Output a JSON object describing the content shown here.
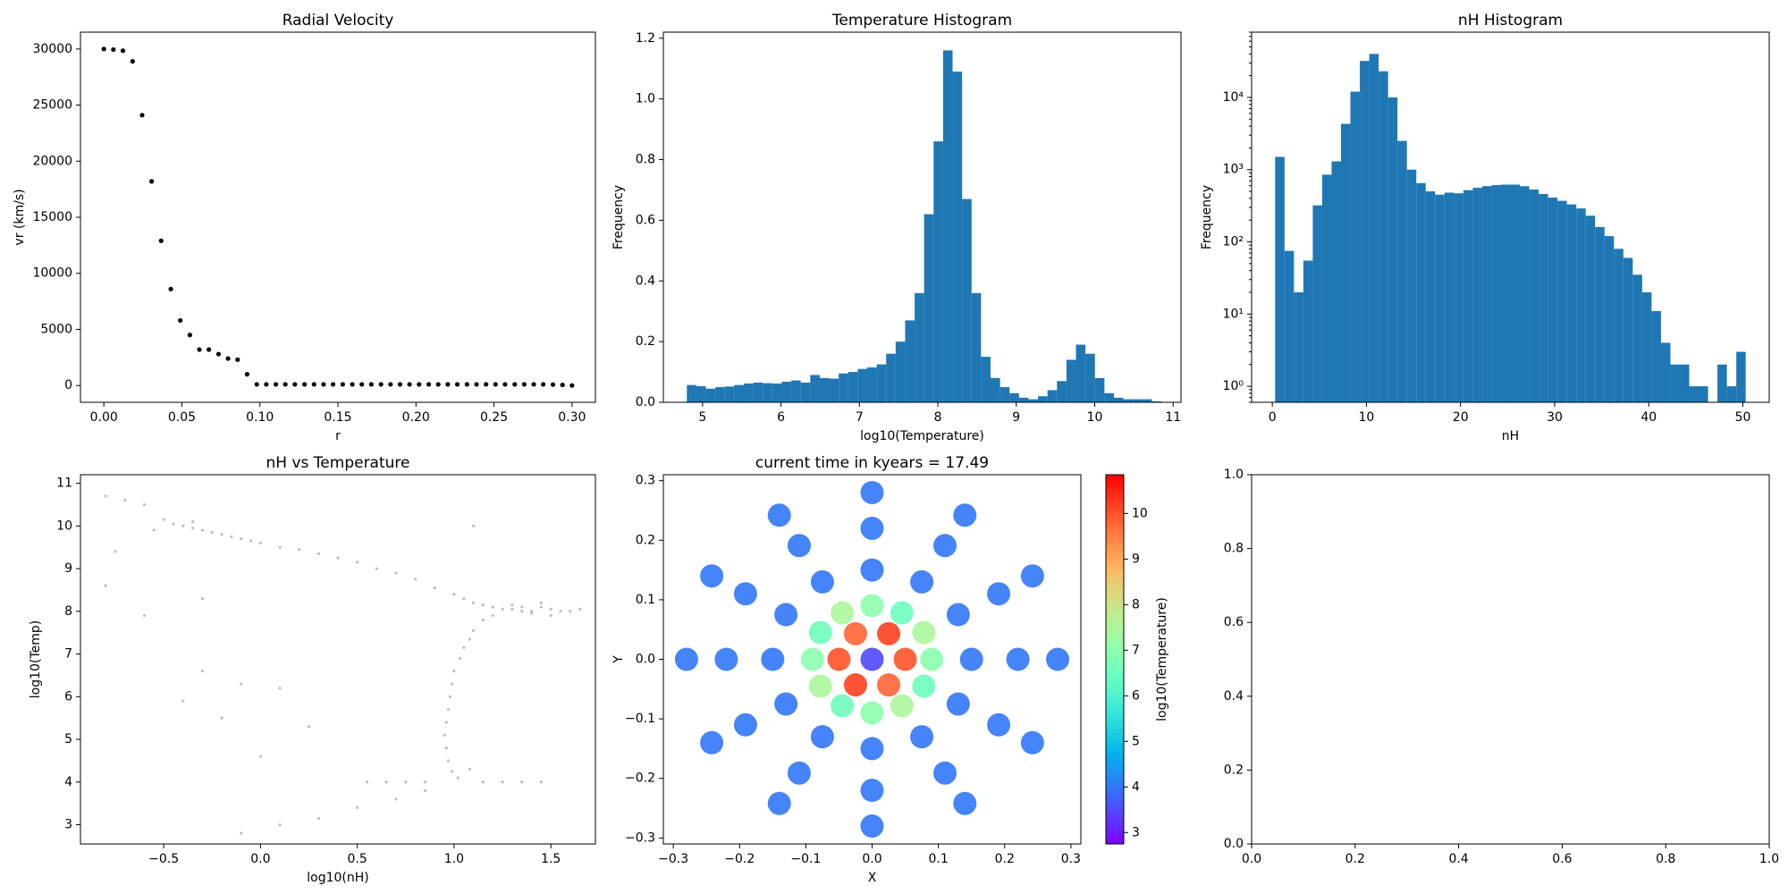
{
  "chart_data": [
    {
      "type": "scatter",
      "title": "Radial Velocity",
      "xlabel": "r",
      "ylabel": "vr (km/s)",
      "color": "#000000",
      "x": [
        0,
        0.0061,
        0.0122,
        0.0184,
        0.0245,
        0.0306,
        0.0367,
        0.0429,
        0.049,
        0.0551,
        0.0612,
        0.0673,
        0.0735,
        0.0796,
        0.0857,
        0.0918,
        0.098,
        0.1041,
        0.1102,
        0.1163,
        0.1224,
        0.1286,
        0.1347,
        0.1408,
        0.1469,
        0.1531,
        0.1592,
        0.1653,
        0.1714,
        0.1776,
        0.1837,
        0.1898,
        0.1959,
        0.202,
        0.2082,
        0.2143,
        0.2204,
        0.2265,
        0.2327,
        0.2388,
        0.2449,
        0.251,
        0.2571,
        0.2633,
        0.2694,
        0.2755,
        0.2816,
        0.2878,
        0.2939,
        0.3
      ],
      "y": [
        30000,
        29950,
        29850,
        28900,
        24100,
        18200,
        12900,
        8600,
        5800,
        4500,
        3200,
        3200,
        2800,
        2400,
        2300,
        1000,
        100,
        100,
        100,
        100,
        100,
        100,
        100,
        100,
        100,
        100,
        100,
        100,
        100,
        100,
        100,
        100,
        100,
        100,
        100,
        100,
        100,
        100,
        100,
        100,
        100,
        100,
        100,
        100,
        100,
        100,
        100,
        80,
        50,
        0
      ],
      "xlim": [
        -0.015,
        0.315
      ],
      "xticks": [
        {
          "value": 0,
          "label": "0.00"
        },
        {
          "value": 0.05,
          "label": "0.05"
        },
        {
          "value": 0.1,
          "label": "0.10"
        },
        {
          "value": 0.15,
          "label": "0.15"
        },
        {
          "value": 0.2,
          "label": "0.20"
        },
        {
          "value": 0.25,
          "label": "0.25"
        },
        {
          "value": 0.3,
          "label": "0.30"
        }
      ],
      "ylim": [
        -1500,
        31500
      ],
      "yticks": [
        0,
        5000,
        10000,
        15000,
        20000,
        25000,
        30000
      ]
    },
    {
      "type": "histogram",
      "title": "Temperature Histogram",
      "xlabel": "log10(Temperature)",
      "ylabel": "Frequency",
      "color": "#1f77b4",
      "bins": [
        4.8,
        4.921,
        5.042,
        5.163,
        5.284,
        5.405,
        5.526,
        5.647,
        5.768,
        5.889,
        6.01,
        6.131,
        6.252,
        6.373,
        6.494,
        6.615,
        6.736,
        6.857,
        6.978,
        7.099,
        7.22,
        7.341,
        7.462,
        7.583,
        7.704,
        7.825,
        7.946,
        8.067,
        8.188,
        8.309,
        8.43,
        8.551,
        8.672,
        8.793,
        8.914,
        9.035,
        9.156,
        9.277,
        9.398,
        9.519,
        9.64,
        9.761,
        9.882,
        10.003,
        10.124,
        10.245,
        10.366,
        10.487,
        10.608,
        10.729,
        10.85
      ],
      "values": [
        0.057,
        0.053,
        0.045,
        0.05,
        0.052,
        0.057,
        0.062,
        0.065,
        0.063,
        0.062,
        0.068,
        0.072,
        0.065,
        0.09,
        0.08,
        0.078,
        0.095,
        0.1,
        0.11,
        0.115,
        0.125,
        0.16,
        0.2,
        0.27,
        0.36,
        0.62,
        0.86,
        1.16,
        1.09,
        0.67,
        0.36,
        0.15,
        0.08,
        0.05,
        0.03,
        0.015,
        0.01,
        0.02,
        0.04,
        0.07,
        0.14,
        0.19,
        0.16,
        0.08,
        0.03,
        0.015,
        0.01,
        0.01,
        0.01,
        0.003
      ],
      "xlim": [
        4.5,
        11.1
      ],
      "xticks": [
        5,
        6,
        7,
        8,
        9,
        10,
        11
      ],
      "ylim": [
        0,
        1.22
      ],
      "yticks": [
        {
          "value": 0,
          "label": "0.0"
        },
        {
          "value": 0.2,
          "label": "0.2"
        },
        {
          "value": 0.4,
          "label": "0.4"
        },
        {
          "value": 0.6,
          "label": "0.6"
        },
        {
          "value": 0.8,
          "label": "0.8"
        },
        {
          "value": 1,
          "label": "1.0"
        },
        {
          "value": 1.2,
          "label": "1.2"
        }
      ]
    },
    {
      "type": "histogram",
      "title": "nH Histogram",
      "xlabel": "nH",
      "ylabel": "Frequency",
      "color": "#1f77b4",
      "yscale": "log",
      "bins": [
        0.3,
        1.3,
        2.3,
        3.3,
        4.3,
        5.3,
        6.3,
        7.3,
        8.3,
        9.3,
        10.3,
        11.3,
        12.3,
        13.3,
        14.3,
        15.3,
        16.3,
        17.3,
        18.3,
        19.3,
        20.3,
        21.3,
        22.3,
        23.3,
        24.3,
        25.3,
        26.3,
        27.3,
        28.3,
        29.3,
        30.3,
        31.3,
        32.3,
        33.3,
        34.3,
        35.3,
        36.3,
        37.3,
        38.3,
        39.3,
        40.3,
        41.3,
        42.3,
        43.3,
        44.3,
        45.3,
        46.3,
        47.3,
        48.3,
        49.3,
        50.3
      ],
      "values": [
        1500,
        75,
        20,
        55,
        320,
        850,
        1300,
        4300,
        12000,
        32000,
        40000,
        23000,
        10000,
        2500,
        1000,
        650,
        500,
        450,
        480,
        470,
        520,
        560,
        590,
        610,
        620,
        620,
        590,
        530,
        460,
        410,
        370,
        330,
        290,
        230,
        160,
        120,
        80,
        60,
        35,
        20,
        11,
        4,
        2,
        2,
        1,
        1,
        0,
        2,
        1,
        3
      ],
      "xlim": [
        -2.2,
        52.8
      ],
      "xticks": [
        0,
        10,
        20,
        30,
        40,
        50
      ],
      "ylim": [
        0.6,
        80000
      ],
      "yticks": [
        {
          "value": 1,
          "label": "10⁰"
        },
        {
          "value": 10,
          "label": "10¹"
        },
        {
          "value": 100,
          "label": "10²"
        },
        {
          "value": 1000,
          "label": "10³"
        },
        {
          "value": 10000,
          "label": "10⁴"
        }
      ]
    },
    {
      "type": "scatter",
      "title": "nH vs Temperature",
      "xlabel": "log10(nH)",
      "ylabel": "log10(Temp)",
      "color": "#000000",
      "x": [
        -0.8,
        -0.7,
        -0.6,
        -0.5,
        -0.45,
        -0.4,
        -0.35,
        -0.3,
        -0.25,
        -0.2,
        -0.15,
        -0.1,
        -0.05,
        0,
        0.1,
        0.2,
        0.3,
        0.4,
        0.5,
        0.6,
        0.7,
        0.8,
        0.9,
        1.0,
        1.05,
        1.1,
        1.15,
        1.2,
        1.25,
        1.3,
        1.35,
        1.4,
        1.45,
        1.5,
        1.55,
        1.6,
        1.65,
        1.3,
        1.4,
        1.5,
        1.2,
        1.35,
        1.45,
        1.15,
        1.1,
        1.08,
        1.05,
        1.03,
        1.0,
        0.99,
        0.98,
        0.97,
        0.96,
        0.95,
        0.96,
        0.97,
        0.99,
        1.02,
        1.08,
        0.55,
        0.65,
        0.75,
        0.85,
        1.15,
        1.25,
        1.35,
        1.45,
        -0.1,
        0.1,
        0.3,
        0.5,
        0.7,
        0.85,
        -0.75,
        -0.8,
        -0.6,
        -0.4,
        -0.3,
        -0.2,
        -0.1,
        0,
        0.25,
        -0.3,
        0.1,
        1.1,
        -0.55,
        -0.35
      ],
      "y": [
        10.7,
        10.6,
        10.5,
        10.15,
        10.05,
        10.0,
        9.95,
        9.9,
        9.85,
        9.8,
        9.75,
        9.7,
        9.65,
        9.6,
        9.5,
        9.45,
        9.35,
        9.25,
        9.15,
        9.0,
        8.9,
        8.75,
        8.55,
        8.4,
        8.3,
        8.2,
        8.15,
        8.1,
        8.05,
        8.05,
        8.0,
        8.0,
        8.1,
        8.05,
        8.0,
        8.0,
        8.05,
        8.15,
        7.95,
        7.9,
        7.9,
        8.1,
        8.2,
        7.8,
        7.55,
        7.35,
        7.15,
        6.9,
        6.6,
        6.3,
        6.0,
        5.7,
        5.4,
        5.1,
        4.8,
        4.5,
        4.25,
        4.1,
        4.3,
        4.0,
        4.0,
        4.0,
        4.0,
        4.0,
        4.0,
        4.0,
        4.0,
        2.8,
        3.0,
        3.15,
        3.4,
        3.6,
        3.8,
        9.4,
        8.6,
        7.9,
        5.9,
        6.6,
        5.5,
        6.3,
        4.6,
        5.3,
        8.3,
        6.2,
        10.0,
        9.9,
        10.1
      ],
      "xlim": [
        -0.93,
        1.73
      ],
      "xticks": [
        {
          "value": -0.5,
          "label": "−0.5"
        },
        {
          "value": 0,
          "label": "0.0"
        },
        {
          "value": 0.5,
          "label": "0.5"
        },
        {
          "value": 1,
          "label": "1.0"
        },
        {
          "value": 1.5,
          "label": "1.5"
        }
      ],
      "ylim": [
        2.55,
        11.2
      ],
      "yticks": [
        3,
        4,
        5,
        6,
        7,
        8,
        9,
        10,
        11
      ]
    },
    {
      "type": "colorscatter",
      "title": "current time in kyears = 17.49",
      "xlabel": "X",
      "ylabel": "Y",
      "colormap": "rainbow",
      "x": [
        0.15,
        0.13,
        0.075,
        0,
        -0.075,
        -0.13,
        -0.15,
        -0.13,
        -0.075,
        0,
        0.075,
        0.13,
        0.22,
        0.191,
        0.11,
        0,
        -0.11,
        -0.191,
        -0.22,
        -0.191,
        -0.11,
        0,
        0.11,
        0.191,
        0.28,
        0.242,
        0.14,
        0,
        -0.14,
        -0.242,
        -0.28,
        -0.242,
        -0.14,
        0,
        0.14,
        0.242,
        0.09,
        0.078,
        0.045,
        0,
        -0.045,
        -0.078,
        -0.09,
        -0.078,
        -0.045,
        0,
        0.045,
        0.078,
        0.05,
        0.025,
        -0.025,
        -0.05,
        -0.025,
        0.025,
        0
      ],
      "y": [
        0,
        0.075,
        0.13,
        0.15,
        0.13,
        0.075,
        0,
        -0.075,
        -0.13,
        -0.15,
        -0.13,
        -0.075,
        0,
        0.11,
        0.191,
        0.22,
        0.191,
        0.11,
        0,
        -0.11,
        -0.191,
        -0.22,
        -0.191,
        -0.11,
        0,
        0.14,
        0.242,
        0.28,
        0.242,
        0.14,
        0,
        -0.14,
        -0.242,
        -0.28,
        -0.242,
        -0.14,
        0,
        0.045,
        0.078,
        0.09,
        0.078,
        0.045,
        0,
        -0.045,
        -0.078,
        -0.09,
        -0.078,
        -0.045,
        0,
        0.043,
        0.043,
        0,
        -0.043,
        -0.043,
        0
      ],
      "c": [
        4,
        4,
        4,
        4,
        4,
        4,
        4,
        4,
        4,
        4,
        4,
        4,
        4,
        4,
        4,
        4,
        4,
        4,
        4,
        4,
        4,
        4,
        4,
        4,
        4,
        4,
        4,
        4,
        4,
        4,
        4,
        4,
        4,
        4,
        4,
        4,
        7,
        7.5,
        6.5,
        7,
        7.5,
        6.5,
        7,
        7.5,
        6.5,
        7,
        7.5,
        6.5,
        10,
        10.2,
        9.8,
        10,
        10.2,
        9.8,
        3.5
      ],
      "xlim": [
        -0.315,
        0.315
      ],
      "xticks": [
        {
          "value": -0.3,
          "label": "−0.3"
        },
        {
          "value": -0.2,
          "label": "−0.2"
        },
        {
          "value": -0.1,
          "label": "−0.1"
        },
        {
          "value": 0,
          "label": "0.0"
        },
        {
          "value": 0.1,
          "label": "0.1"
        },
        {
          "value": 0.2,
          "label": "0.2"
        },
        {
          "value": 0.3,
          "label": "0.3"
        }
      ],
      "ylim": [
        -0.31,
        0.31
      ],
      "yticks": [
        {
          "value": -0.3,
          "label": "−0.3"
        },
        {
          "value": -0.2,
          "label": "−0.2"
        },
        {
          "value": -0.1,
          "label": "−0.1"
        },
        {
          "value": 0,
          "label": "0.0"
        },
        {
          "value": 0.1,
          "label": "0.1"
        },
        {
          "value": 0.2,
          "label": "0.2"
        },
        {
          "value": 0.3,
          "label": "0.3"
        }
      ],
      "colorbar": {
        "label": "log10(Temperature)",
        "clim": [
          2.75,
          10.85
        ],
        "ticks": [
          3,
          4,
          5,
          6,
          7,
          8,
          9,
          10
        ]
      }
    },
    {
      "type": "empty",
      "xlim": [
        0,
        1
      ],
      "xticks": [
        {
          "value": 0,
          "label": "0.0"
        },
        {
          "value": 0.2,
          "label": "0.2"
        },
        {
          "value": 0.4,
          "label": "0.4"
        },
        {
          "value": 0.6,
          "label": "0.6"
        },
        {
          "value": 0.8,
          "label": "0.8"
        },
        {
          "value": 1,
          "label": "1.0"
        }
      ],
      "ylim": [
        0,
        1
      ],
      "yticks": [
        {
          "value": 0,
          "label": "0.0"
        },
        {
          "value": 0.2,
          "label": "0.2"
        },
        {
          "value": 0.4,
          "label": "0.4"
        },
        {
          "value": 0.6,
          "label": "0.6"
        },
        {
          "value": 0.8,
          "label": "0.8"
        },
        {
          "value": 1,
          "label": "1.0"
        }
      ]
    }
  ]
}
